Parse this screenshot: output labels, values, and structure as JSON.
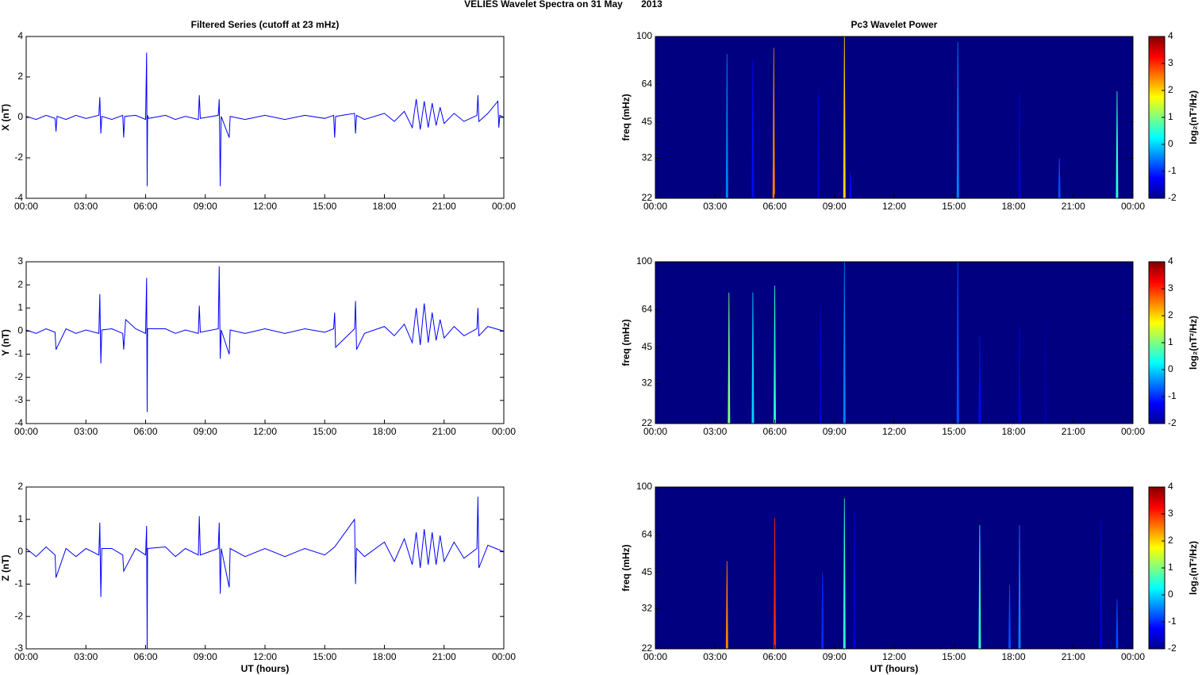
{
  "title": "VELIES Wavelet Spectra on 31 May       2013",
  "chart_data": [
    {
      "type": "line",
      "title": "Filtered Series (cutoff at 23 mHz)",
      "ylabel": "X (nT)",
      "color": "#0000ff",
      "x": [
        0,
        0.5,
        1.0,
        1.45,
        1.5,
        1.55,
        2.0,
        2.5,
        3.0,
        3.65,
        3.7,
        3.75,
        3.8,
        4.3,
        4.85,
        4.9,
        4.95,
        5.5,
        6.0,
        6.05,
        6.08,
        6.1,
        6.15,
        7,
        7.5,
        8.0,
        8.65,
        8.7,
        8.75,
        9.65,
        9.7,
        9.75,
        9.8,
        10.2,
        10.25,
        11,
        12,
        13,
        14,
        15,
        15.45,
        15.5,
        15.55,
        16.5,
        16.55,
        16.6,
        17,
        18,
        18.5,
        19,
        19.4,
        19.6,
        19.8,
        20.0,
        20.2,
        20.4,
        20.6,
        20.8,
        21.0,
        21.5,
        22,
        22.65,
        22.7,
        22.75,
        23.2,
        23.7,
        23.75,
        23.8,
        24
      ],
      "values": [
        0.05,
        -0.1,
        0.1,
        -0.05,
        -0.7,
        0.05,
        -0.1,
        0.1,
        -0.05,
        0.1,
        1.0,
        -0.8,
        0.05,
        -0.1,
        0.1,
        -1.0,
        0.05,
        0.1,
        -0.1,
        3.2,
        -3.4,
        0.1,
        -0.05,
        0.1,
        -0.1,
        0.05,
        -0.1,
        1.1,
        -0.05,
        0.1,
        0.9,
        -3.4,
        0.05,
        -1.0,
        0.05,
        -0.1,
        0.1,
        -0.1,
        0.1,
        -0.05,
        0.1,
        -1.0,
        0.05,
        0.2,
        -0.8,
        0.1,
        -0.1,
        0.2,
        -0.2,
        0.3,
        -0.5,
        0.9,
        -0.6,
        0.8,
        -0.5,
        0.7,
        -0.4,
        0.5,
        -0.3,
        0.2,
        -0.2,
        0.1,
        1.1,
        -0.2,
        0.2,
        0.8,
        -0.5,
        0.1,
        0.0
      ],
      "xlim": [
        0,
        24
      ],
      "xticks": [
        {
          "value": 0,
          "label": "00:00"
        },
        {
          "value": 3,
          "label": "03:00"
        },
        {
          "value": 6,
          "label": "06:00"
        },
        {
          "value": 9,
          "label": "09:00"
        },
        {
          "value": 12,
          "label": "12:00"
        },
        {
          "value": 15,
          "label": "15:00"
        },
        {
          "value": 18,
          "label": "18:00"
        },
        {
          "value": 21,
          "label": "21:00"
        },
        {
          "value": 24,
          "label": "00:00"
        }
      ],
      "ylim": [
        -4,
        4
      ],
      "yticks": [
        -4,
        -2,
        0,
        2,
        4
      ]
    },
    {
      "type": "line",
      "ylabel": "Y (nT)",
      "color": "#0000ff",
      "x": [
        0,
        0.5,
        1.0,
        1.45,
        1.5,
        2.0,
        2.5,
        3.0,
        3.65,
        3.7,
        3.75,
        3.8,
        4.3,
        4.85,
        4.9,
        5.0,
        5.5,
        6.0,
        6.05,
        6.08,
        6.1,
        7,
        7.5,
        8.0,
        8.65,
        8.7,
        8.75,
        9.65,
        9.7,
        9.75,
        9.8,
        10.2,
        10.25,
        11,
        12,
        13,
        14,
        15,
        15.45,
        15.5,
        15.55,
        16.5,
        16.55,
        16.6,
        17,
        18,
        18.5,
        19,
        19.4,
        19.6,
        19.8,
        20.0,
        20.2,
        20.4,
        20.6,
        20.8,
        21.0,
        21.5,
        22,
        22.65,
        22.7,
        22.75,
        23.2,
        24
      ],
      "values": [
        0.05,
        -0.1,
        0.1,
        -0.05,
        -0.8,
        0.1,
        -0.1,
        0.05,
        -0.1,
        1.6,
        -1.4,
        0.05,
        0.1,
        -0.1,
        -0.8,
        0.5,
        0.1,
        -0.1,
        2.3,
        -3.5,
        0.1,
        0.1,
        -0.1,
        0.05,
        -0.1,
        1.1,
        -0.05,
        0.1,
        2.8,
        -1.2,
        0.05,
        -1.0,
        0.05,
        -0.1,
        0.1,
        -0.1,
        0.1,
        -0.05,
        0.1,
        0.8,
        -0.7,
        0.1,
        1.3,
        -0.8,
        -0.1,
        0.2,
        -0.2,
        0.3,
        -0.5,
        1.0,
        -0.6,
        1.2,
        -0.5,
        0.8,
        -0.4,
        0.5,
        -0.3,
        0.2,
        -0.2,
        0.1,
        1.0,
        -0.2,
        0.2,
        0.0
      ],
      "xlim": [
        0,
        24
      ],
      "xticks": [
        {
          "value": 0,
          "label": "00:00"
        },
        {
          "value": 3,
          "label": "03:00"
        },
        {
          "value": 6,
          "label": "06:00"
        },
        {
          "value": 9,
          "label": "09:00"
        },
        {
          "value": 12,
          "label": "12:00"
        },
        {
          "value": 15,
          "label": "15:00"
        },
        {
          "value": 18,
          "label": "18:00"
        },
        {
          "value": 21,
          "label": "21:00"
        },
        {
          "value": 24,
          "label": "00:00"
        }
      ],
      "ylim": [
        -4,
        3
      ],
      "yticks": [
        -4,
        -3,
        -2,
        -1,
        0,
        1,
        2,
        3
      ]
    },
    {
      "type": "line",
      "ylabel": "Z (nT)",
      "xlabel": "UT (hours)",
      "color": "#0000ff",
      "x": [
        0,
        0.5,
        1.0,
        1.45,
        1.5,
        2.0,
        2.5,
        3.0,
        3.65,
        3.7,
        3.75,
        3.8,
        4.3,
        4.85,
        4.9,
        5.5,
        6.0,
        6.05,
        6.08,
        6.1,
        7,
        7.5,
        8.0,
        8.65,
        8.7,
        8.75,
        9.65,
        9.7,
        9.75,
        9.8,
        10.2,
        10.25,
        11,
        12,
        13,
        14,
        15,
        15.5,
        16.5,
        16.55,
        16.6,
        17,
        18,
        18.5,
        19,
        19.4,
        19.6,
        19.8,
        20.0,
        20.2,
        20.4,
        20.6,
        20.8,
        21.0,
        21.5,
        22,
        22.65,
        22.7,
        22.75,
        23.2,
        24
      ],
      "values": [
        0.1,
        -0.15,
        0.15,
        -0.1,
        -0.8,
        0.1,
        -0.15,
        0.1,
        -0.1,
        0.9,
        -1.4,
        0.1,
        0.1,
        -0.1,
        -0.6,
        0.1,
        -0.1,
        0.8,
        -3.0,
        0.1,
        0.15,
        -0.15,
        0.1,
        -0.1,
        1.1,
        -0.1,
        0.1,
        0.9,
        -1.3,
        0.1,
        -1.1,
        0.1,
        -0.15,
        0.1,
        -0.15,
        0.1,
        -0.1,
        0.15,
        1.0,
        -1.0,
        0.1,
        -0.15,
        0.3,
        -0.3,
        0.4,
        -0.4,
        0.6,
        -0.5,
        0.7,
        -0.4,
        0.6,
        -0.4,
        0.5,
        -0.3,
        0.3,
        -0.2,
        0.1,
        1.7,
        -0.5,
        0.2,
        0.0
      ],
      "xlim": [
        0,
        24
      ],
      "xticks": [
        {
          "value": 0,
          "label": "00:00"
        },
        {
          "value": 3,
          "label": "03:00"
        },
        {
          "value": 6,
          "label": "06:00"
        },
        {
          "value": 9,
          "label": "09:00"
        },
        {
          "value": 12,
          "label": "12:00"
        },
        {
          "value": 15,
          "label": "15:00"
        },
        {
          "value": 18,
          "label": "18:00"
        },
        {
          "value": 21,
          "label": "21:00"
        },
        {
          "value": 24,
          "label": "00:00"
        }
      ],
      "ylim": [
        -3,
        2
      ],
      "yticks": [
        -3,
        -2,
        -1,
        0,
        1,
        2
      ]
    },
    {
      "type": "heatmap",
      "title": "Pc3 Wavelet Power",
      "ylabel": "freq (mHz)",
      "log_y": true,
      "x": [
        3.6,
        4.9,
        5.95,
        8.2,
        9.5,
        9.8,
        15.2,
        18.3,
        20.3,
        23.2
      ],
      "freq_top": [
        85,
        80,
        90,
        60,
        100,
        28,
        95,
        60,
        32,
        60
      ],
      "values": [
        -0.5,
        -1.2,
        2.5,
        -1.5,
        2.0,
        -1.2,
        -0.5,
        -1.5,
        -0.8,
        0.5
      ],
      "xlim": [
        0,
        24
      ],
      "xticks": [
        {
          "value": 0,
          "label": "00:00"
        },
        {
          "value": 3,
          "label": "03:00"
        },
        {
          "value": 6,
          "label": "06:00"
        },
        {
          "value": 9,
          "label": "09:00"
        },
        {
          "value": 12,
          "label": "12:00"
        },
        {
          "value": 15,
          "label": "15:00"
        },
        {
          "value": 18,
          "label": "18:00"
        },
        {
          "value": 21,
          "label": "21:00"
        },
        {
          "value": 24,
          "label": "00:00"
        }
      ],
      "ylim": [
        22,
        100
      ],
      "yticks": [
        22,
        32,
        45,
        64,
        100
      ],
      "colorbar": {
        "label": "log₂(nT²/Hz)",
        "lim": [
          -2,
          4
        ],
        "ticks": [
          -2,
          -1,
          0,
          1,
          2,
          3,
          4
        ]
      }
    },
    {
      "type": "heatmap",
      "ylabel": "freq (mHz)",
      "log_y": true,
      "x": [
        3.7,
        4.9,
        6.0,
        8.3,
        9.5,
        15.2,
        16.3,
        18.3,
        19.6
      ],
      "freq_top": [
        75,
        75,
        80,
        65,
        100,
        100,
        50,
        55,
        60
      ],
      "values": [
        1.0,
        0.0,
        0.5,
        -1.5,
        -0.5,
        -0.8,
        -1.2,
        -1.5,
        -1.8
      ],
      "xlim": [
        0,
        24
      ],
      "xticks": [
        {
          "value": 0,
          "label": "00:00"
        },
        {
          "value": 3,
          "label": "03:00"
        },
        {
          "value": 6,
          "label": "06:00"
        },
        {
          "value": 9,
          "label": "09:00"
        },
        {
          "value": 12,
          "label": "12:00"
        },
        {
          "value": 15,
          "label": "15:00"
        },
        {
          "value": 18,
          "label": "18:00"
        },
        {
          "value": 21,
          "label": "21:00"
        },
        {
          "value": 24,
          "label": "00:00"
        }
      ],
      "ylim": [
        22,
        100
      ],
      "yticks": [
        22,
        32,
        45,
        64,
        100
      ],
      "colorbar": {
        "label": "log₂(nT²/Hz)",
        "lim": [
          -2,
          4
        ],
        "ticks": [
          -2,
          -1,
          0,
          1,
          2,
          3,
          4
        ]
      }
    },
    {
      "type": "heatmap",
      "ylabel": "freq (mHz)",
      "xlabel": "UT (hours)",
      "log_y": true,
      "x": [
        3.6,
        6.0,
        8.4,
        9.5,
        10.0,
        16.3,
        17.8,
        18.3,
        22.4,
        23.2
      ],
      "freq_top": [
        50,
        75,
        45,
        90,
        80,
        70,
        40,
        70,
        75,
        35
      ],
      "values": [
        2.5,
        3.0,
        -1.0,
        0.5,
        -1.5,
        0.5,
        -0.8,
        -0.5,
        -1.5,
        -0.8
      ],
      "xlim": [
        0,
        24
      ],
      "xticks": [
        {
          "value": 0,
          "label": "00:00"
        },
        {
          "value": 3,
          "label": "03:00"
        },
        {
          "value": 6,
          "label": "06:00"
        },
        {
          "value": 9,
          "label": "09:00"
        },
        {
          "value": 12,
          "label": "12:00"
        },
        {
          "value": 15,
          "label": "15:00"
        },
        {
          "value": 18,
          "label": "18:00"
        },
        {
          "value": 21,
          "label": "21:00"
        },
        {
          "value": 24,
          "label": "00:00"
        }
      ],
      "ylim": [
        22,
        100
      ],
      "yticks": [
        22,
        32,
        45,
        64,
        100
      ],
      "colorbar": {
        "label": "log₂(nT²/Hz)",
        "lim": [
          -2,
          4
        ],
        "ticks": [
          -2,
          -1,
          0,
          1,
          2,
          3,
          4
        ]
      }
    }
  ]
}
